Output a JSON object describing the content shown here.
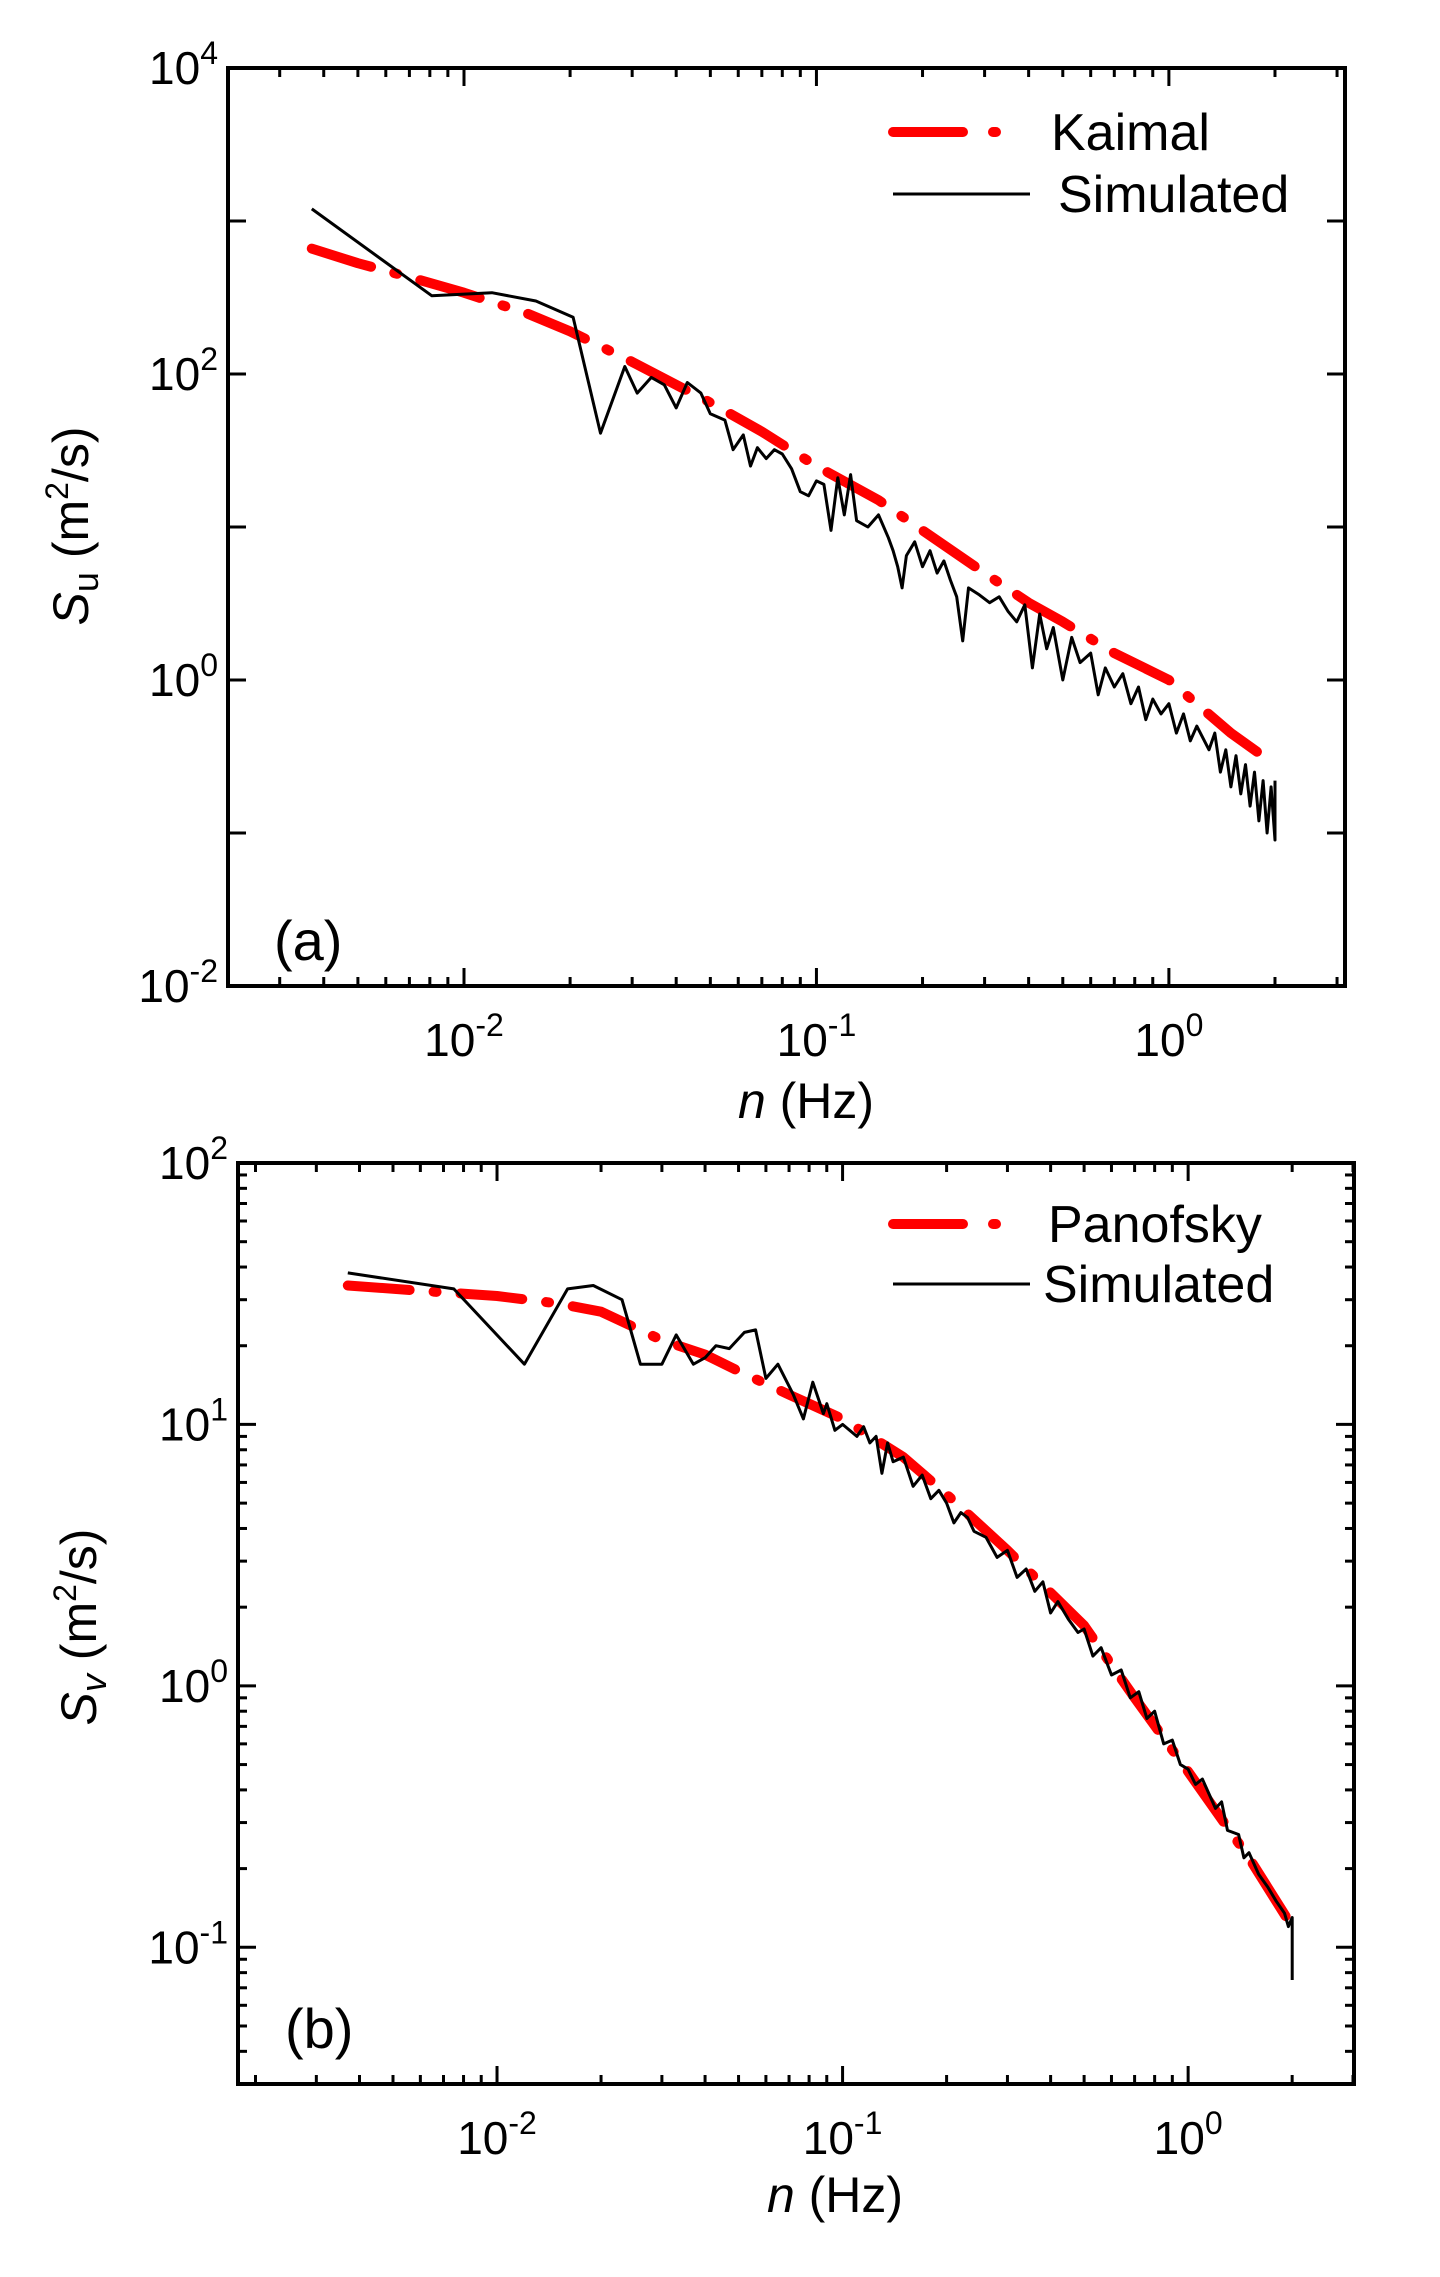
{
  "colors": {
    "model": "#ff0000",
    "simulated": "#000000"
  },
  "chart_data": [
    {
      "type": "line",
      "panel_label": "(a)",
      "xlabel_italic": "n",
      "xlabel_rest": " (Hz)",
      "ylabel_symbol": "S",
      "ylabel_sub": "u",
      "ylabel_unit_pre": " (m",
      "ylabel_unit_sup": "2",
      "ylabel_unit_post": "/s)",
      "xscale": "log",
      "yscale": "log",
      "xlim": [
        0.00214,
        3.16
      ],
      "ylim": [
        0.01,
        10000
      ],
      "xticks": [
        {
          "value": 0.01,
          "base": "10",
          "exp": "-2"
        },
        {
          "value": 0.1,
          "base": "10",
          "exp": "-1"
        },
        {
          "value": 1,
          "base": "10",
          "exp": "0"
        }
      ],
      "yticks": [
        {
          "value": 0.01,
          "base": "10",
          "exp": "-2"
        },
        {
          "value": 1,
          "base": "10",
          "exp": "0"
        },
        {
          "value": 100,
          "base": "10",
          "exp": "2"
        },
        {
          "value": 10000,
          "base": "10",
          "exp": "4"
        }
      ],
      "y_minor_ticks": false,
      "legend_position": "top-right",
      "series": [
        {
          "name": "Kaimal",
          "style": "dash-dot",
          "color": "#ff0000",
          "x": [
            0.0037,
            0.005,
            0.007,
            0.01,
            0.015,
            0.02,
            0.03,
            0.05,
            0.07,
            0.1,
            0.15,
            0.2,
            0.3,
            0.4,
            0.5,
            0.7,
            1.0,
            1.5,
            2.0
          ],
          "y": [
            660,
            530,
            430,
            340,
            250,
            190,
            120,
            65,
            42,
            25,
            15,
            9.5,
            5.0,
            3.2,
            2.4,
            1.5,
            1.0,
            0.45,
            0.28
          ]
        },
        {
          "name": "Simulated",
          "style": "solid",
          "color": "#000000",
          "x": [
            0.0037,
            0.0081,
            0.012,
            0.016,
            0.0204,
            0.0244,
            0.0286,
            0.031,
            0.034,
            0.037,
            0.04,
            0.043,
            0.047,
            0.05,
            0.055,
            0.058,
            0.062,
            0.065,
            0.068,
            0.072,
            0.076,
            0.08,
            0.085,
            0.09,
            0.095,
            0.1,
            0.105,
            0.11,
            0.115,
            0.12,
            0.125,
            0.13,
            0.14,
            0.15,
            0.16,
            0.165,
            0.17,
            0.175,
            0.18,
            0.19,
            0.2,
            0.21,
            0.22,
            0.23,
            0.24,
            0.25,
            0.26,
            0.27,
            0.29,
            0.31,
            0.33,
            0.35,
            0.37,
            0.39,
            0.41,
            0.43,
            0.45,
            0.47,
            0.5,
            0.53,
            0.56,
            0.6,
            0.63,
            0.66,
            0.7,
            0.74,
            0.78,
            0.82,
            0.86,
            0.9,
            0.95,
            1.0,
            1.05,
            1.1,
            1.15,
            1.2,
            1.3,
            1.35,
            1.4,
            1.45,
            1.5,
            1.55,
            1.6,
            1.65,
            1.7,
            1.75,
            1.8,
            1.85,
            1.9,
            1.95,
            2.0,
            2.0
          ],
          "y": [
            1200,
            325,
            340,
            300,
            235,
            41,
            112,
            75,
            95,
            85,
            60,
            88,
            75,
            55,
            50,
            32,
            40,
            25,
            33,
            28,
            32,
            30,
            24,
            17,
            16,
            20,
            19,
            9.5,
            21,
            12,
            22,
            11,
            10,
            12,
            8.5,
            7,
            5.5,
            4,
            6.5,
            8,
            5.5,
            7,
            5,
            6,
            4.5,
            3.5,
            1.8,
            4,
            3.6,
            3.2,
            3.5,
            2.8,
            2.4,
            3.1,
            1.2,
            2.7,
            1.6,
            2.2,
            1.0,
            1.9,
            1.3,
            1.5,
            0.8,
            1.2,
            0.9,
            1.1,
            0.7,
            0.9,
            0.55,
            0.75,
            0.6,
            0.7,
            0.45,
            0.6,
            0.4,
            0.5,
            0.35,
            0.45,
            0.25,
            0.35,
            0.2,
            0.32,
            0.18,
            0.28,
            0.15,
            0.25,
            0.12,
            0.22,
            0.1,
            0.2,
            0.09,
            0.22
          ]
        }
      ]
    },
    {
      "type": "line",
      "panel_label": "(b)",
      "xlabel_italic": "n",
      "xlabel_rest": " (Hz)",
      "ylabel_symbol": "S",
      "ylabel_sub": "v",
      "ylabel_unit_pre": " (m",
      "ylabel_unit_sup": "2",
      "ylabel_unit_post": "/s)",
      "xscale": "log",
      "yscale": "log",
      "xlim": [
        0.00178,
        3.02
      ],
      "ylim": [
        0.03,
        100
      ],
      "xticks": [
        {
          "value": 0.01,
          "base": "10",
          "exp": "-2"
        },
        {
          "value": 0.1,
          "base": "10",
          "exp": "-1"
        },
        {
          "value": 1,
          "base": "10",
          "exp": "0"
        }
      ],
      "yticks": [
        {
          "value": 0.1,
          "base": "10",
          "exp": "-1"
        },
        {
          "value": 1,
          "base": "10",
          "exp": "0"
        },
        {
          "value": 10,
          "base": "10",
          "exp": "1"
        },
        {
          "value": 100,
          "base": "10",
          "exp": "2"
        }
      ],
      "y_minor_ticks": true,
      "legend_position": "top-right",
      "series": [
        {
          "name": "Panofsky",
          "style": "dash-dot",
          "color": "#ff0000",
          "x": [
            0.0037,
            0.007,
            0.01,
            0.015,
            0.02,
            0.03,
            0.04,
            0.05,
            0.07,
            0.1,
            0.15,
            0.2,
            0.3,
            0.5,
            0.7,
            1.0,
            1.5,
            2.0
          ],
          "y": [
            34,
            32,
            31,
            29,
            27,
            21,
            18.5,
            16,
            13,
            10.5,
            7.5,
            5.4,
            3.3,
            1.7,
            0.9,
            0.47,
            0.22,
            0.12
          ]
        },
        {
          "name": "Simulated",
          "style": "solid",
          "color": "#000000",
          "x": [
            0.0037,
            0.0075,
            0.012,
            0.016,
            0.019,
            0.023,
            0.026,
            0.03,
            0.033,
            0.037,
            0.04,
            0.043,
            0.047,
            0.052,
            0.056,
            0.06,
            0.065,
            0.072,
            0.077,
            0.082,
            0.088,
            0.09,
            0.095,
            0.1,
            0.11,
            0.115,
            0.12,
            0.125,
            0.13,
            0.135,
            0.14,
            0.15,
            0.16,
            0.17,
            0.18,
            0.19,
            0.2,
            0.21,
            0.22,
            0.23,
            0.24,
            0.26,
            0.28,
            0.3,
            0.32,
            0.34,
            0.36,
            0.38,
            0.4,
            0.42,
            0.45,
            0.48,
            0.5,
            0.53,
            0.56,
            0.6,
            0.64,
            0.68,
            0.72,
            0.76,
            0.8,
            0.85,
            0.9,
            0.95,
            1.0,
            1.05,
            1.1,
            1.2,
            1.25,
            1.3,
            1.4,
            1.45,
            1.5,
            1.6,
            1.7,
            1.8,
            1.9,
            1.95,
            2.0,
            2.0
          ],
          "y": [
            38,
            33,
            17,
            33,
            34,
            30,
            17,
            17,
            22,
            17,
            18,
            20,
            19.5,
            22.5,
            23,
            15,
            17,
            13,
            10.5,
            14.5,
            11,
            12,
            9.5,
            10,
            9,
            9.8,
            8.5,
            9,
            6.5,
            8.5,
            7.2,
            7.5,
            5.8,
            6.4,
            5.2,
            5.6,
            5,
            4.2,
            4.6,
            4.4,
            3.9,
            3.7,
            3.1,
            3.3,
            2.6,
            2.8,
            2.3,
            2.5,
            1.9,
            2.1,
            1.8,
            1.6,
            1.65,
            1.3,
            1.4,
            1.1,
            1.15,
            0.9,
            0.95,
            0.75,
            0.8,
            0.6,
            0.62,
            0.5,
            0.48,
            0.42,
            0.44,
            0.34,
            0.36,
            0.28,
            0.27,
            0.22,
            0.23,
            0.19,
            0.17,
            0.15,
            0.135,
            0.12,
            0.13,
            0.075
          ]
        }
      ]
    }
  ]
}
